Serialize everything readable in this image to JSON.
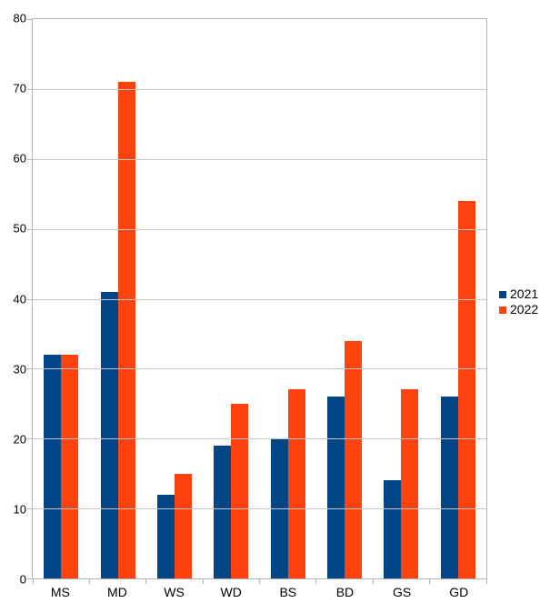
{
  "chart_data": {
    "type": "bar",
    "title": "",
    "xlabel": "",
    "ylabel": "",
    "categories": [
      "MS",
      "MD",
      "WS",
      "WD",
      "BS",
      "BD",
      "GS",
      "GD"
    ],
    "series": [
      {
        "name": "2021",
        "color": "#004586",
        "values": [
          32,
          41,
          12,
          19,
          20,
          26,
          14,
          26
        ]
      },
      {
        "name": "2022",
        "color": "#ff420e",
        "values": [
          32,
          71,
          15,
          25,
          27,
          34,
          27,
          54
        ]
      }
    ],
    "ylim": [
      0,
      80
    ],
    "ytick_step": 10,
    "yticks": [
      0,
      10,
      20,
      30,
      40,
      50,
      60,
      70,
      80
    ],
    "grid": true,
    "legend_position": "right",
    "colors": {
      "grid": "#c6c6c6",
      "axis": "#b3b3b3",
      "text": "#000000",
      "background": "#ffffff"
    }
  }
}
